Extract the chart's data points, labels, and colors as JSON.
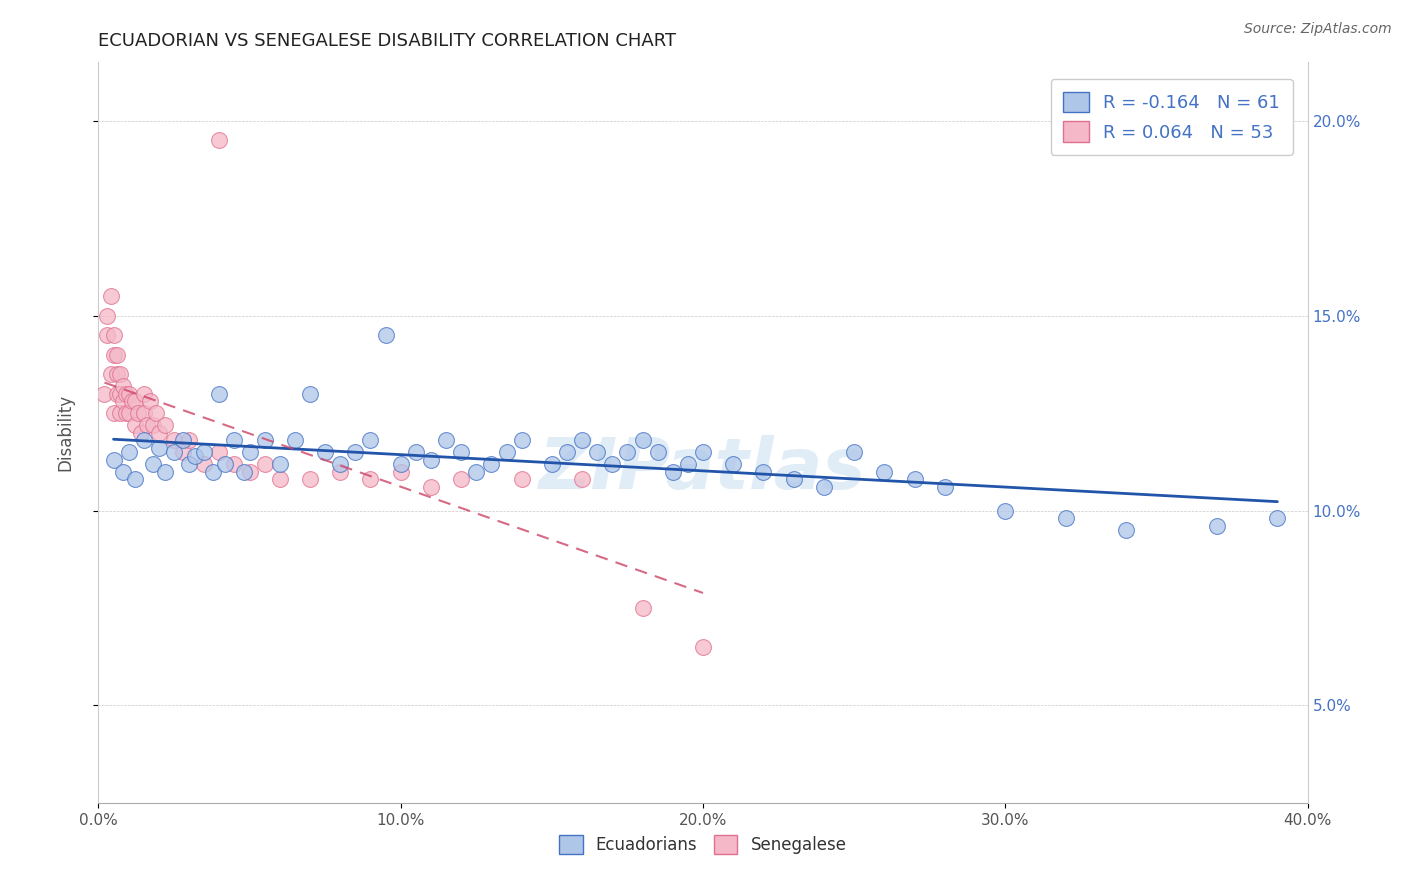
{
  "title": "ECUADORIAN VS SENEGALESE DISABILITY CORRELATION CHART",
  "source": "Source: ZipAtlas.com",
  "ylabel": "Disability",
  "xlim": [
    0.0,
    0.4
  ],
  "ylim": [
    0.025,
    0.215
  ],
  "xticks": [
    0.0,
    0.1,
    0.2,
    0.3,
    0.4
  ],
  "yticks": [
    0.05,
    0.1,
    0.15,
    0.2
  ],
  "xtick_labels": [
    "0.0%",
    "10.0%",
    "20.0%",
    "30.0%",
    "40.0%"
  ],
  "ytick_labels": [
    "5.0%",
    "10.0%",
    "15.0%",
    "20.0%"
  ],
  "r_ecuadorian": -0.164,
  "n_ecuadorian": 61,
  "r_senegalese": 0.064,
  "n_senegalese": 53,
  "blue_scatter_color": "#aec6e8",
  "blue_edge_color": "#4472c4",
  "pink_scatter_color": "#f4b8c8",
  "pink_edge_color": "#e07090",
  "blue_line_color": "#2255aa",
  "pink_line_color": "#cc4466",
  "watermark": "ZIPatlas",
  "background_color": "#ffffff",
  "ecuadorian_x": [
    0.005,
    0.008,
    0.01,
    0.012,
    0.015,
    0.018,
    0.02,
    0.022,
    0.025,
    0.028,
    0.03,
    0.032,
    0.035,
    0.038,
    0.04,
    0.042,
    0.045,
    0.048,
    0.05,
    0.055,
    0.06,
    0.065,
    0.07,
    0.075,
    0.08,
    0.085,
    0.09,
    0.095,
    0.1,
    0.105,
    0.11,
    0.115,
    0.12,
    0.125,
    0.13,
    0.135,
    0.14,
    0.15,
    0.155,
    0.16,
    0.165,
    0.17,
    0.175,
    0.18,
    0.185,
    0.19,
    0.195,
    0.2,
    0.21,
    0.22,
    0.23,
    0.24,
    0.25,
    0.26,
    0.27,
    0.28,
    0.3,
    0.32,
    0.34,
    0.37,
    0.39
  ],
  "ecuadorian_y": [
    0.113,
    0.11,
    0.115,
    0.108,
    0.118,
    0.112,
    0.116,
    0.11,
    0.115,
    0.118,
    0.112,
    0.114,
    0.115,
    0.11,
    0.13,
    0.112,
    0.118,
    0.11,
    0.115,
    0.118,
    0.112,
    0.118,
    0.13,
    0.115,
    0.112,
    0.115,
    0.118,
    0.145,
    0.112,
    0.115,
    0.113,
    0.118,
    0.115,
    0.11,
    0.112,
    0.115,
    0.118,
    0.112,
    0.115,
    0.118,
    0.115,
    0.112,
    0.115,
    0.118,
    0.115,
    0.11,
    0.112,
    0.115,
    0.112,
    0.11,
    0.108,
    0.106,
    0.115,
    0.11,
    0.108,
    0.106,
    0.1,
    0.098,
    0.095,
    0.096,
    0.098
  ],
  "senegalese_x": [
    0.002,
    0.003,
    0.003,
    0.004,
    0.004,
    0.005,
    0.005,
    0.005,
    0.006,
    0.006,
    0.006,
    0.007,
    0.007,
    0.007,
    0.008,
    0.008,
    0.009,
    0.009,
    0.01,
    0.01,
    0.011,
    0.012,
    0.012,
    0.013,
    0.014,
    0.015,
    0.015,
    0.016,
    0.017,
    0.018,
    0.019,
    0.02,
    0.022,
    0.025,
    0.028,
    0.03,
    0.035,
    0.04,
    0.045,
    0.05,
    0.055,
    0.06,
    0.07,
    0.08,
    0.09,
    0.1,
    0.11,
    0.12,
    0.14,
    0.16,
    0.18,
    0.2,
    0.04
  ],
  "senegalese_y": [
    0.13,
    0.145,
    0.15,
    0.135,
    0.155,
    0.125,
    0.14,
    0.145,
    0.13,
    0.135,
    0.14,
    0.125,
    0.13,
    0.135,
    0.128,
    0.132,
    0.125,
    0.13,
    0.125,
    0.13,
    0.128,
    0.122,
    0.128,
    0.125,
    0.12,
    0.125,
    0.13,
    0.122,
    0.128,
    0.122,
    0.125,
    0.12,
    0.122,
    0.118,
    0.115,
    0.118,
    0.112,
    0.115,
    0.112,
    0.11,
    0.112,
    0.108,
    0.108,
    0.11,
    0.108,
    0.11,
    0.106,
    0.108,
    0.108,
    0.108,
    0.075,
    0.065,
    0.195
  ]
}
